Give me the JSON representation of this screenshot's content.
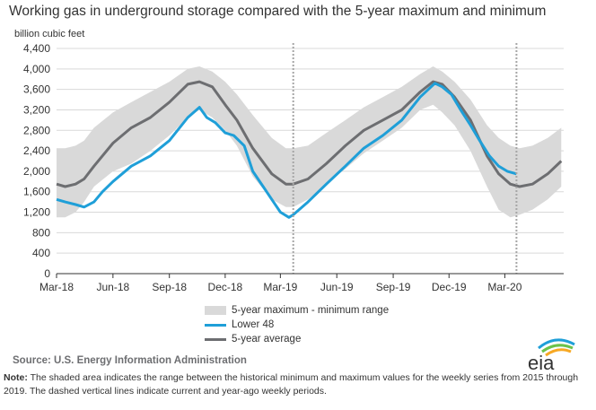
{
  "title": "Working gas in underground  storage compared with the 5-year maximum and minimum",
  "source": "Source:  U.S. Energy Information Administration",
  "note_label": "Note:",
  "note_text": " The shaded area indicates the range between the historical minimum and maximum values for the weekly series from 2015 through 2019. The dashed vertical lines indicate current and year-ago weekly periods.",
  "logo_text": "eia",
  "colors": {
    "range": "#d9d9d9",
    "lower48": "#1f9fd8",
    "avg": "#6d6e71",
    "grid": "#d9d9d9",
    "vline": "#a6a6a6"
  },
  "chart_data": {
    "type": "area",
    "title": "Working gas in underground  storage compared with the 5-year maximum and minimum",
    "ylabel": "billion cubic feet",
    "xlabel": "",
    "ylim": [
      0,
      4400
    ],
    "yticks": [
      0,
      400,
      800,
      1200,
      1600,
      2000,
      2400,
      2800,
      3200,
      3600,
      4000,
      4400
    ],
    "ytick_labels": [
      "0",
      "400",
      "800",
      "1,200",
      "1,600",
      "2,000",
      "2,400",
      "2,800",
      "3,200",
      "3,600",
      "4,000",
      "4,400"
    ],
    "xlim": [
      "2018-03-01",
      "2020-06-05"
    ],
    "xticks": [
      "2018-03-01",
      "2018-06-01",
      "2018-09-01",
      "2018-12-01",
      "2019-03-01",
      "2019-06-01",
      "2019-09-01",
      "2019-12-01",
      "2020-03-01"
    ],
    "xtick_labels": [
      "Mar-18",
      "Jun-18",
      "Sep-18",
      "Dec-18",
      "Mar-19",
      "Jun-19",
      "Sep-19",
      "Dec-19",
      "Mar-20"
    ],
    "grid": "horizontal",
    "legend_position": "bottom-center",
    "vlines": [
      "2019-03-22",
      "2020-03-20"
    ],
    "series": [
      {
        "name": "5-year maximum - minimum range",
        "kind": "range",
        "x": [
          "2018-03-01",
          "2018-03-15",
          "2018-04-01",
          "2018-04-15",
          "2018-05-01",
          "2018-06-01",
          "2018-07-01",
          "2018-08-01",
          "2018-09-01",
          "2018-10-01",
          "2018-10-20",
          "2018-11-10",
          "2018-12-01",
          "2018-12-20",
          "2019-01-15",
          "2019-02-15",
          "2019-03-10",
          "2019-03-22",
          "2019-04-15",
          "2019-05-15",
          "2019-06-15",
          "2019-07-15",
          "2019-08-15",
          "2019-09-15",
          "2019-10-15",
          "2019-11-05",
          "2019-11-20",
          "2019-12-10",
          "2020-01-05",
          "2020-02-01",
          "2020-02-20",
          "2020-03-10",
          "2020-03-25",
          "2020-04-15",
          "2020-05-10",
          "2020-06-01"
        ],
        "upper": [
          2450,
          2450,
          2500,
          2600,
          2850,
          3150,
          3350,
          3550,
          3750,
          4000,
          4050,
          3950,
          3750,
          3500,
          3100,
          2650,
          2450,
          2450,
          2500,
          2750,
          3000,
          3250,
          3450,
          3650,
          3900,
          4050,
          3950,
          3750,
          3400,
          2900,
          2650,
          2500,
          2450,
          2500,
          2650,
          2850
        ],
        "lower": [
          1100,
          1100,
          1200,
          1400,
          1700,
          2000,
          2150,
          2400,
          2700,
          3050,
          3200,
          3050,
          2800,
          2500,
          1900,
          1450,
          1300,
          1300,
          1450,
          1750,
          2050,
          2350,
          2600,
          2850,
          3200,
          3300,
          3150,
          2900,
          2400,
          1700,
          1250,
          1100,
          1150,
          1250,
          1450,
          1700
        ]
      },
      {
        "name": "Lower 48",
        "kind": "line",
        "x": [
          "2018-03-01",
          "2018-03-15",
          "2018-04-01",
          "2018-04-15",
          "2018-05-01",
          "2018-05-15",
          "2018-06-01",
          "2018-07-01",
          "2018-08-01",
          "2018-09-01",
          "2018-10-01",
          "2018-10-20",
          "2018-11-01",
          "2018-11-15",
          "2018-12-01",
          "2018-12-15",
          "2019-01-01",
          "2019-01-15",
          "2019-02-01",
          "2019-02-15",
          "2019-03-01",
          "2019-03-15",
          "2019-03-22",
          "2019-04-15",
          "2019-05-15",
          "2019-06-15",
          "2019-07-15",
          "2019-08-15",
          "2019-09-15",
          "2019-10-15",
          "2019-11-08",
          "2019-11-20",
          "2019-12-05",
          "2019-12-20",
          "2020-01-05",
          "2020-01-20",
          "2020-02-05",
          "2020-02-20",
          "2020-03-05",
          "2020-03-20"
        ],
        "values": [
          1450,
          1400,
          1350,
          1300,
          1400,
          1600,
          1800,
          2100,
          2300,
          2600,
          3050,
          3250,
          3050,
          2950,
          2750,
          2700,
          2500,
          2000,
          1700,
          1450,
          1200,
          1100,
          1150,
          1400,
          1750,
          2100,
          2450,
          2700,
          3000,
          3450,
          3720,
          3650,
          3500,
          3200,
          2900,
          2600,
          2300,
          2100,
          2000,
          1950
        ]
      },
      {
        "name": "5-year average",
        "kind": "line",
        "x": [
          "2018-03-01",
          "2018-03-15",
          "2018-04-01",
          "2018-04-15",
          "2018-05-01",
          "2018-06-01",
          "2018-07-01",
          "2018-08-01",
          "2018-09-01",
          "2018-10-01",
          "2018-10-20",
          "2018-11-10",
          "2018-12-01",
          "2018-12-20",
          "2019-01-15",
          "2019-02-15",
          "2019-03-10",
          "2019-03-22",
          "2019-04-15",
          "2019-05-15",
          "2019-06-15",
          "2019-07-15",
          "2019-08-15",
          "2019-09-15",
          "2019-10-15",
          "2019-11-05",
          "2019-11-20",
          "2019-12-10",
          "2020-01-05",
          "2020-02-01",
          "2020-02-20",
          "2020-03-10",
          "2020-03-25",
          "2020-04-15",
          "2020-05-10",
          "2020-06-01"
        ],
        "values": [
          1750,
          1700,
          1750,
          1850,
          2100,
          2550,
          2850,
          3050,
          3350,
          3700,
          3750,
          3650,
          3300,
          3000,
          2450,
          1950,
          1750,
          1750,
          1850,
          2150,
          2500,
          2800,
          3000,
          3200,
          3550,
          3750,
          3700,
          3450,
          3000,
          2300,
          1950,
          1750,
          1700,
          1750,
          1950,
          2200
        ]
      }
    ]
  }
}
